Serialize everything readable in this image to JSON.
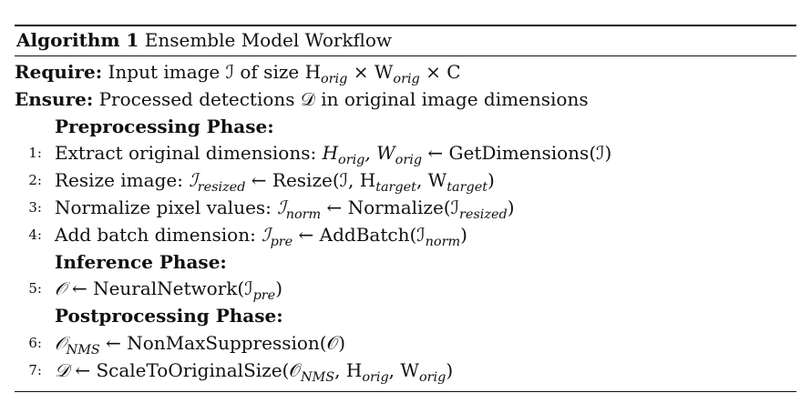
{
  "algorithm": {
    "label": "Algorithm 1",
    "title": "Ensemble Model Workflow"
  },
  "require": {
    "keyword": "Require:",
    "text": "Input image ℐ of size H",
    "h_sub": "orig",
    "times1": " × W",
    "w_sub": "orig",
    "tail": " × C"
  },
  "ensure": {
    "keyword": "Ensure:",
    "text": "Processed detections 𝒟 in original image dimensions"
  },
  "phases": {
    "preprocessing": "Preprocessing Phase:",
    "inference": "Inference Phase:",
    "postprocessing": "Postprocessing Phase:"
  },
  "steps": [
    {
      "num": "1:",
      "text": "Extract original dimensions: ",
      "math_a": "H",
      "sub_a": "orig",
      "math_b": ", W",
      "sub_b": "orig",
      "rest": " ← GetDimensions(ℐ)"
    },
    {
      "num": "2:",
      "text": "Resize image: ",
      "math_a": "ℐ",
      "sub_a": "resized",
      "rest_a": " ← Resize(ℐ, H",
      "sub_b": "target",
      "rest_b": ", W",
      "sub_c": "target",
      "rest_c": ")"
    },
    {
      "num": "3:",
      "text": "Normalize pixel values: ",
      "math_a": "ℐ",
      "sub_a": "norm",
      "rest_a": " ← Normalize(ℐ",
      "sub_b": "resized",
      "rest_b": ")"
    },
    {
      "num": "4:",
      "text": "Add batch dimension: ",
      "math_a": "ℐ",
      "sub_a": "pre",
      "rest_a": " ← AddBatch(ℐ",
      "sub_b": "norm",
      "rest_b": ")"
    },
    {
      "num": "5:",
      "math_a": "𝒪",
      "rest_a": " ← NeuralNetwork(ℐ",
      "sub_a": "pre",
      "rest_b": ")"
    },
    {
      "num": "6:",
      "math_a": "𝒪",
      "sub_a": "NMS",
      "rest_a": " ← NonMaxSuppression(𝒪)"
    },
    {
      "num": "7:",
      "math_a": "𝒟",
      "rest_a": " ← ScaleToOriginalSize(𝒪",
      "sub_a": "NMS",
      "rest_b": ", H",
      "sub_b": "orig",
      "rest_c": ", W",
      "sub_c": "orig",
      "rest_d": ")"
    }
  ]
}
